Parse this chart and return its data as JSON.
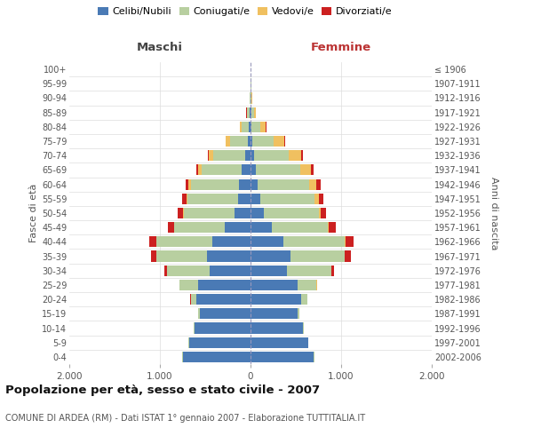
{
  "age_groups": [
    "0-4",
    "5-9",
    "10-14",
    "15-19",
    "20-24",
    "25-29",
    "30-34",
    "35-39",
    "40-44",
    "45-49",
    "50-54",
    "55-59",
    "60-64",
    "65-69",
    "70-74",
    "75-79",
    "80-84",
    "85-89",
    "90-94",
    "95-99",
    "100+"
  ],
  "birth_years": [
    "2002-2006",
    "1997-2001",
    "1992-1996",
    "1987-1991",
    "1982-1986",
    "1977-1981",
    "1972-1976",
    "1967-1971",
    "1962-1966",
    "1957-1961",
    "1952-1956",
    "1947-1951",
    "1942-1946",
    "1937-1941",
    "1932-1936",
    "1927-1931",
    "1922-1926",
    "1917-1921",
    "1912-1916",
    "1907-1911",
    "≤ 1906"
  ],
  "male": {
    "celibi": [
      750,
      680,
      620,
      560,
      600,
      580,
      450,
      480,
      420,
      280,
      180,
      140,
      130,
      100,
      60,
      30,
      15,
      8,
      4,
      2,
      2
    ],
    "coniugati": [
      2,
      2,
      5,
      15,
      60,
      200,
      470,
      560,
      620,
      560,
      560,
      560,
      530,
      440,
      350,
      200,
      80,
      30,
      6,
      2,
      1
    ],
    "vedovi": [
      0,
      0,
      0,
      0,
      0,
      1,
      1,
      2,
      2,
      3,
      5,
      10,
      25,
      40,
      50,
      40,
      20,
      5,
      1,
      0,
      0
    ],
    "divorziati": [
      0,
      0,
      0,
      1,
      2,
      5,
      30,
      55,
      80,
      70,
      60,
      45,
      35,
      20,
      15,
      8,
      5,
      2,
      0,
      0,
      0
    ]
  },
  "female": {
    "nubili": [
      700,
      640,
      580,
      520,
      560,
      520,
      400,
      440,
      360,
      240,
      150,
      110,
      80,
      60,
      40,
      20,
      10,
      5,
      4,
      2,
      2
    ],
    "coniugate": [
      2,
      2,
      5,
      20,
      70,
      210,
      490,
      600,
      680,
      610,
      600,
      600,
      570,
      490,
      380,
      230,
      100,
      35,
      10,
      3,
      1
    ],
    "vedove": [
      0,
      0,
      0,
      0,
      0,
      1,
      2,
      3,
      5,
      10,
      20,
      40,
      80,
      120,
      140,
      120,
      60,
      20,
      5,
      2,
      1
    ],
    "divorziate": [
      0,
      0,
      0,
      1,
      2,
      8,
      30,
      60,
      90,
      80,
      65,
      55,
      40,
      25,
      15,
      10,
      5,
      2,
      1,
      0,
      0
    ]
  },
  "colors": {
    "celibi": "#4a7ab5",
    "coniugati": "#b8cfa0",
    "vedovi": "#f0c060",
    "divorziati": "#cc2020"
  },
  "xlim": 2000,
  "title": "Popolazione per età, sesso e stato civile - 2007",
  "subtitle": "COMUNE DI ARDEA (RM) - Dati ISTAT 1° gennaio 2007 - Elaborazione TUTTITALIA.IT",
  "ylabel_left": "Fasce di età",
  "ylabel_right": "Anni di nascita",
  "xlabel_left": "Maschi",
  "xlabel_right": "Femmine",
  "legend_labels": [
    "Celibi/Nubili",
    "Coniugati/e",
    "Vedovi/e",
    "Divorziati/e"
  ]
}
